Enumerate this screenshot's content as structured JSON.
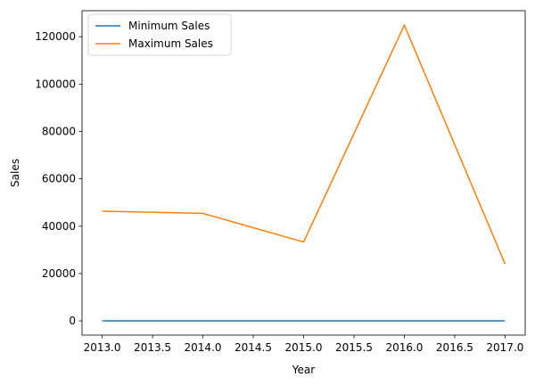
{
  "chart_data": {
    "type": "line",
    "title": "",
    "xlabel": "Year",
    "ylabel": "Sales",
    "x": [
      2013,
      2014,
      2015,
      2016,
      2017
    ],
    "xlim": [
      2012.8,
      2017.2
    ],
    "ylim": [
      -6000,
      131000
    ],
    "xticks": [
      2013.0,
      2013.5,
      2014.0,
      2014.5,
      2015.0,
      2015.5,
      2016.0,
      2016.5,
      2017.0
    ],
    "xtick_labels": [
      "2013.0",
      "2013.5",
      "2014.0",
      "2014.5",
      "2015.0",
      "2015.5",
      "2016.0",
      "2016.5",
      "2017.0"
    ],
    "yticks": [
      0,
      20000,
      40000,
      60000,
      80000,
      100000,
      120000
    ],
    "ytick_labels": [
      "0",
      "20000",
      "40000",
      "60000",
      "80000",
      "100000",
      "120000"
    ],
    "grid": false,
    "legend_position": "top-left",
    "series": [
      {
        "name": "Minimum Sales",
        "color": "#1f77b4",
        "values": [
          0.4,
          0.4,
          0.4,
          0.4,
          0.4
        ]
      },
      {
        "name": "Maximum Sales",
        "color": "#ff7f0e",
        "values": [
          46300,
          45400,
          33300,
          124900,
          24000
        ]
      }
    ]
  }
}
